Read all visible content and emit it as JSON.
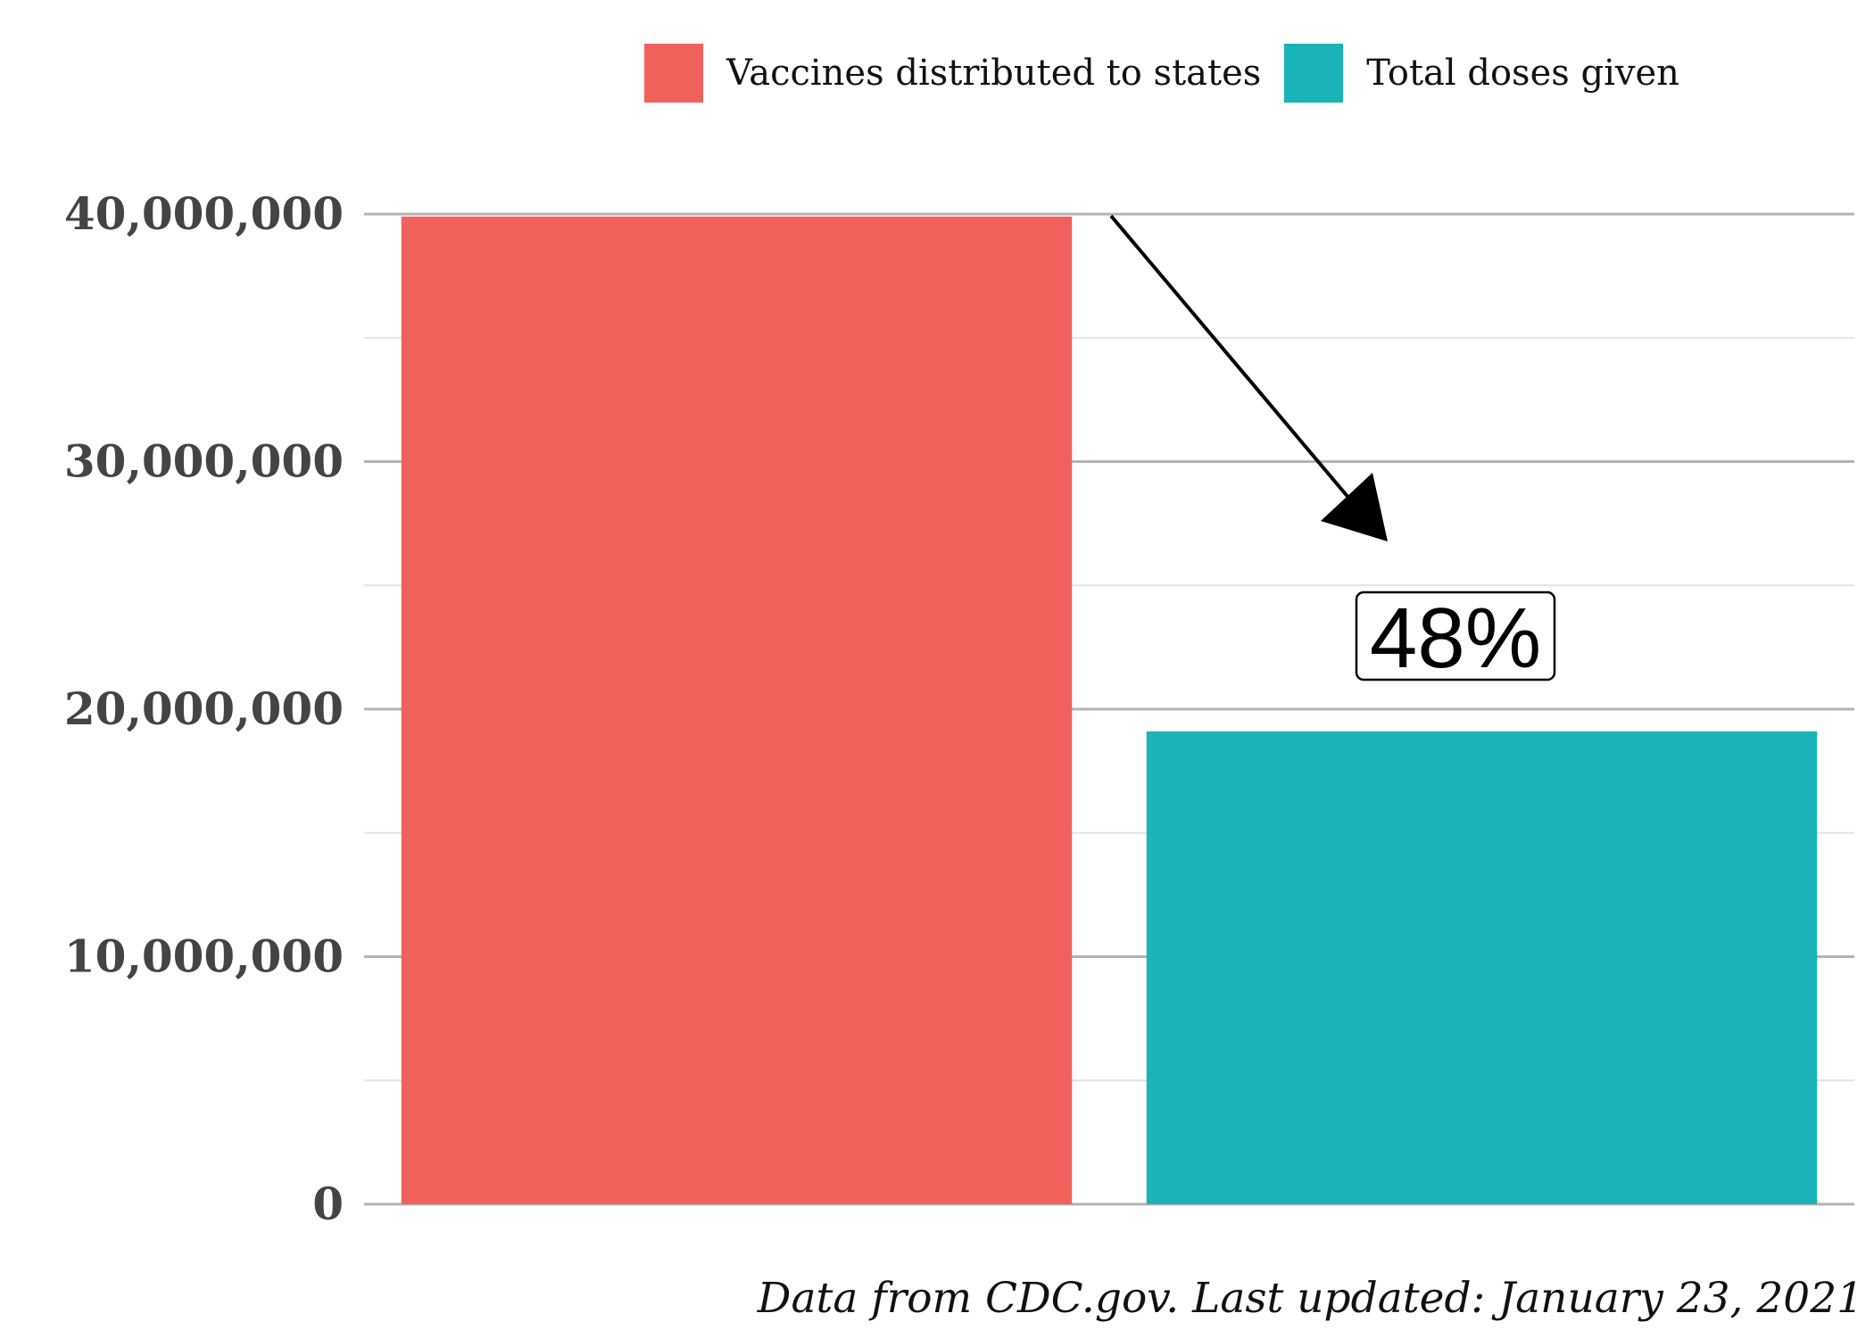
{
  "chart_data": {
    "type": "bar",
    "categories": [
      "Vaccines distributed to states",
      "Total doses given"
    ],
    "values": [
      39900000,
      19100000
    ],
    "colors": [
      "#F2605B",
      "#1AB3B8"
    ],
    "ylim": [
      0,
      40000000
    ],
    "yticks": [
      0,
      10000000,
      20000000,
      30000000,
      40000000
    ],
    "ytick_labels": [
      "0",
      "10,000,000",
      "20,000,000",
      "30,000,000",
      "40,000,000"
    ],
    "minor_grid": [
      5000000,
      15000000,
      25000000,
      35000000
    ],
    "grid": true,
    "legend": {
      "position": "top",
      "entries": [
        {
          "label": "Vaccines distributed to states",
          "color": "#F2605B"
        },
        {
          "label": "Total doses given",
          "color": "#1AB3B8"
        }
      ]
    },
    "annotation": {
      "text": "48%",
      "arrow": "from distributed bar to doses given bar"
    },
    "caption": "Data from CDC.gov. Last updated: January 23, 2021"
  }
}
